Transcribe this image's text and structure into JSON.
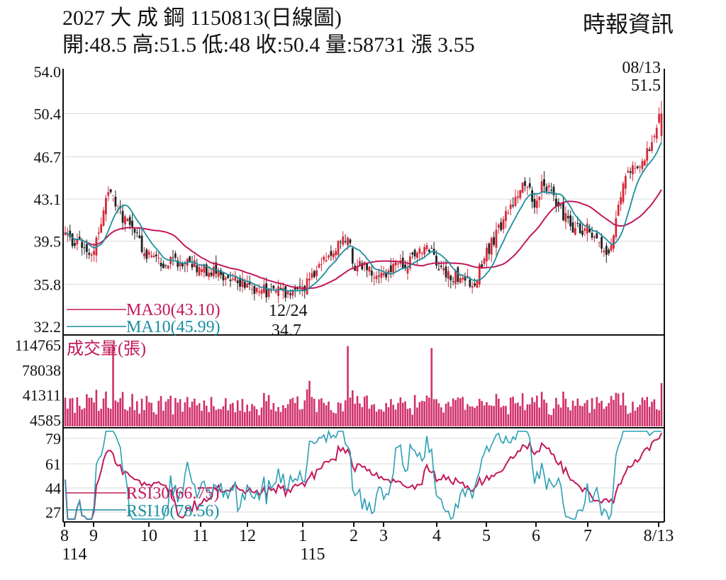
{
  "header": {
    "title": "2027 大 成 鋼 1150813(日線圖)",
    "quote": "開:48.5 高:51.5 低:48 收:50.4 量:58731 漲 3.55",
    "source": "時報資訊"
  },
  "colors": {
    "ma30": "#c2185b",
    "ma10": "#1a8fa0",
    "candle_up": "#d42a3c",
    "candle_down": "#222222",
    "volume": "#d0306a",
    "rsi30": "#c2185b",
    "rsi10": "#2a9fb5",
    "grid": "#d8d8d8"
  },
  "chart_data": [
    {
      "type": "candlestick",
      "panel": "price",
      "y_ticks": [
        "54.0",
        "50.4",
        "46.7",
        "43.1",
        "39.5",
        "35.8",
        "32.2"
      ],
      "ylim": [
        32.2,
        54.0
      ],
      "grid": true,
      "annotations": [
        {
          "date": "12/24",
          "value": "34.7"
        },
        {
          "date": "08/13",
          "value": "51.5"
        }
      ],
      "legend": [
        {
          "name": "MA30(43.10)",
          "key": "ma30"
        },
        {
          "name": "MA10(45.99)",
          "key": "ma10"
        }
      ],
      "month_closes": [
        [
          "8",
          40.0
        ],
        [
          "9",
          38.3
        ],
        [
          "10",
          38.0
        ],
        [
          "11",
          37.2
        ],
        [
          "12",
          35.6
        ],
        [
          "1",
          35.3
        ],
        [
          "2",
          37.4
        ],
        [
          "3",
          36.6
        ],
        [
          "4",
          37.1
        ],
        [
          "5",
          38.6
        ],
        [
          "6",
          42.6
        ],
        [
          "7",
          40.6
        ],
        [
          "8/13",
          50.4
        ]
      ]
    },
    {
      "type": "bar",
      "panel": "volume",
      "title": "成交量(張)",
      "y_ticks": [
        "114765",
        "78038",
        "41311",
        "4585"
      ],
      "ylim": [
        4585,
        114765
      ]
    },
    {
      "type": "line",
      "panel": "rsi",
      "y_ticks": [
        "79",
        "61",
        "44",
        "27"
      ],
      "ylim": [
        27,
        79
      ],
      "legend": [
        {
          "name": "RSI30(66.75)",
          "key": "rsi30"
        },
        {
          "name": "RSI10(78.56)",
          "key": "rsi10"
        }
      ],
      "x_ticks": [
        "8",
        "9",
        "10",
        "11",
        "12",
        "1",
        "2",
        "3",
        "4",
        "5",
        "6",
        "7",
        "8/13"
      ],
      "x_sub": [
        "114",
        "115"
      ]
    }
  ]
}
